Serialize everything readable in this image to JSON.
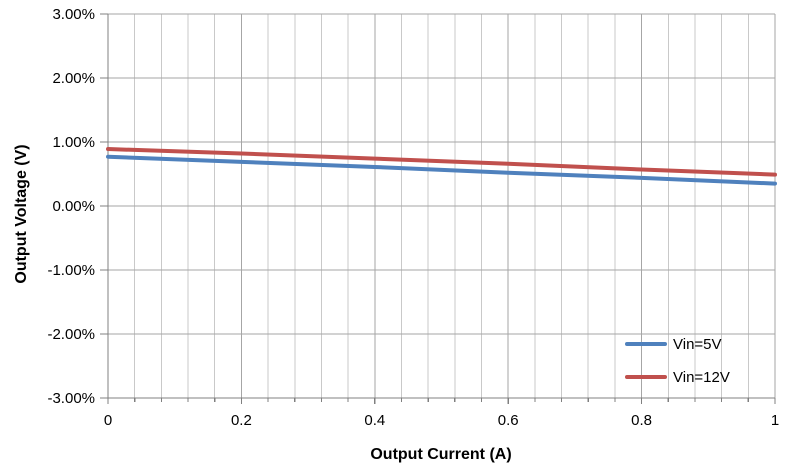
{
  "chart_data": {
    "type": "line",
    "title": "",
    "xlabel": "Output Current (A)",
    "ylabel": "Output Voltage (V)",
    "x": [
      0,
      0.2,
      0.4,
      0.6,
      0.8,
      1.0
    ],
    "series": [
      {
        "name": "Vin=5V",
        "color": "#4F81BD",
        "values": [
          0.77,
          0.69,
          0.61,
          0.52,
          0.44,
          0.35
        ]
      },
      {
        "name": "Vin=12V",
        "color": "#C0504D",
        "values": [
          0.89,
          0.82,
          0.74,
          0.66,
          0.57,
          0.49
        ]
      }
    ],
    "value_unit": "percent",
    "xlim": [
      0,
      1
    ],
    "ylim": [
      -3,
      3
    ],
    "y_major_unit": 1.0,
    "x_major_unit": 0.2,
    "x_minor_unit": 0.04,
    "y_tick_labels": [
      "3.00%",
      "2.00%",
      "1.00%",
      "0.00%",
      "-1.00%",
      "-2.00%",
      "-3.00%"
    ],
    "y_tick_values": [
      3,
      2,
      1,
      0,
      -1,
      -2,
      -3
    ],
    "x_tick_labels": [
      "0",
      "0.2",
      "0.4",
      "0.6",
      "0.8",
      "1"
    ],
    "x_tick_values": [
      0,
      0.2,
      0.4,
      0.6,
      0.8,
      1
    ],
    "grid": "horizontal-major, vertical-major-and-minor",
    "legend_position": "inside-lower-right",
    "colors": {
      "grid_major": "#A6A6A6",
      "grid_minor": "#C9C9C9",
      "axis_line": "#808080",
      "text": "#000000",
      "background": "#FFFFFF"
    }
  }
}
